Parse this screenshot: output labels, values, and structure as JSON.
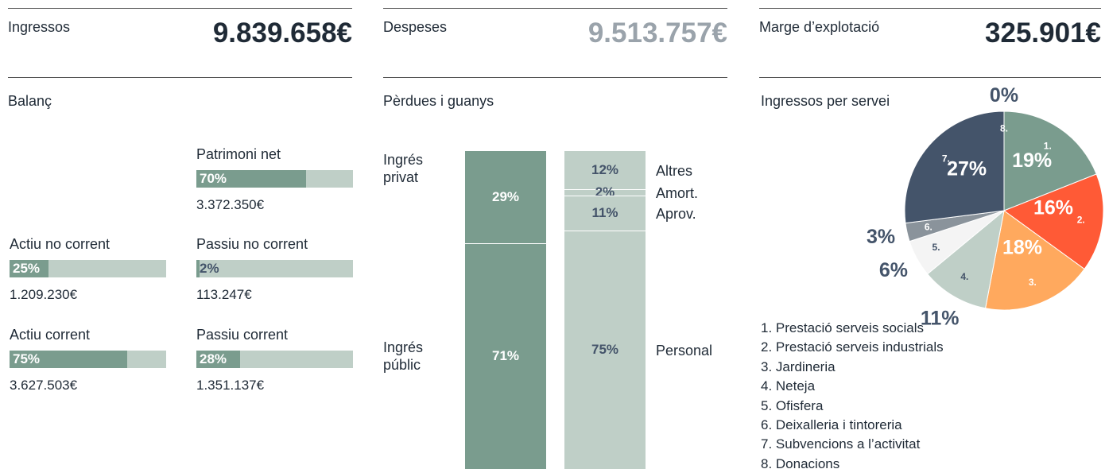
{
  "kpis": [
    {
      "label": "Ingressos",
      "value": "9.839.658€"
    },
    {
      "label": "Despeses",
      "value": "9.513.757€"
    },
    {
      "label": "Marge d’explotació",
      "value": "325.901€"
    }
  ],
  "balance": {
    "title": "Balanç",
    "items": [
      {
        "name": "Patrimoni net",
        "value": 70,
        "value_label": "70%",
        "amount": "3.372.350€"
      },
      {
        "name": "Actiu no corrent",
        "value": 25,
        "value_label": "25%",
        "amount": "1.209.230€"
      },
      {
        "name": "Passiu no corrent",
        "value": 2,
        "value_label": "2%",
        "amount": "113.247€"
      },
      {
        "name": "Actiu corrent",
        "value": 75,
        "value_label": "75%",
        "amount": "3.627.503€"
      },
      {
        "name": "Passiu corrent",
        "value": 28,
        "value_label": "28%",
        "amount": "1.351.137€"
      }
    ]
  },
  "pnl": {
    "title": "Pèrdues i guanys",
    "income": {
      "names": [
        "Ingrés privat",
        "Ingrés públic"
      ],
      "values": [
        29,
        71
      ],
      "value_labels": [
        "29%",
        "71%"
      ]
    },
    "expenses": {
      "names": [
        "Altres",
        "Amort.",
        "Aprov.",
        "Personal"
      ],
      "values": [
        12,
        2,
        11,
        75
      ],
      "value_labels": [
        "12%",
        "2%",
        "11%",
        "75%"
      ]
    }
  },
  "pie": {
    "title": "Ingressos per servei",
    "values": [
      19,
      16,
      18,
      11,
      6,
      3,
      27,
      0
    ],
    "value_labels": [
      "19%",
      "16%",
      "18%",
      "11%",
      "6%",
      "3%",
      "27%",
      "0%"
    ],
    "markers": [
      "1.",
      "2.",
      "3.",
      "4.",
      "5.",
      "6.",
      "7.",
      "8."
    ],
    "colors": [
      "#7a9c8e",
      "#ff5a36",
      "#ffa95e",
      "#bfcfc7",
      "#f4f4f4",
      "#8a939b",
      "#44546a",
      "#2a3644"
    ],
    "legend": [
      "1. Prestació serveis socials",
      "2. Prestació serveis industrials",
      "3. Jardineria",
      "4. Neteja",
      "5. Ofisfera",
      "6. Deixalleria i tintoreria",
      "7. Subvencions a l’activitat",
      "8. Donacions"
    ]
  }
}
